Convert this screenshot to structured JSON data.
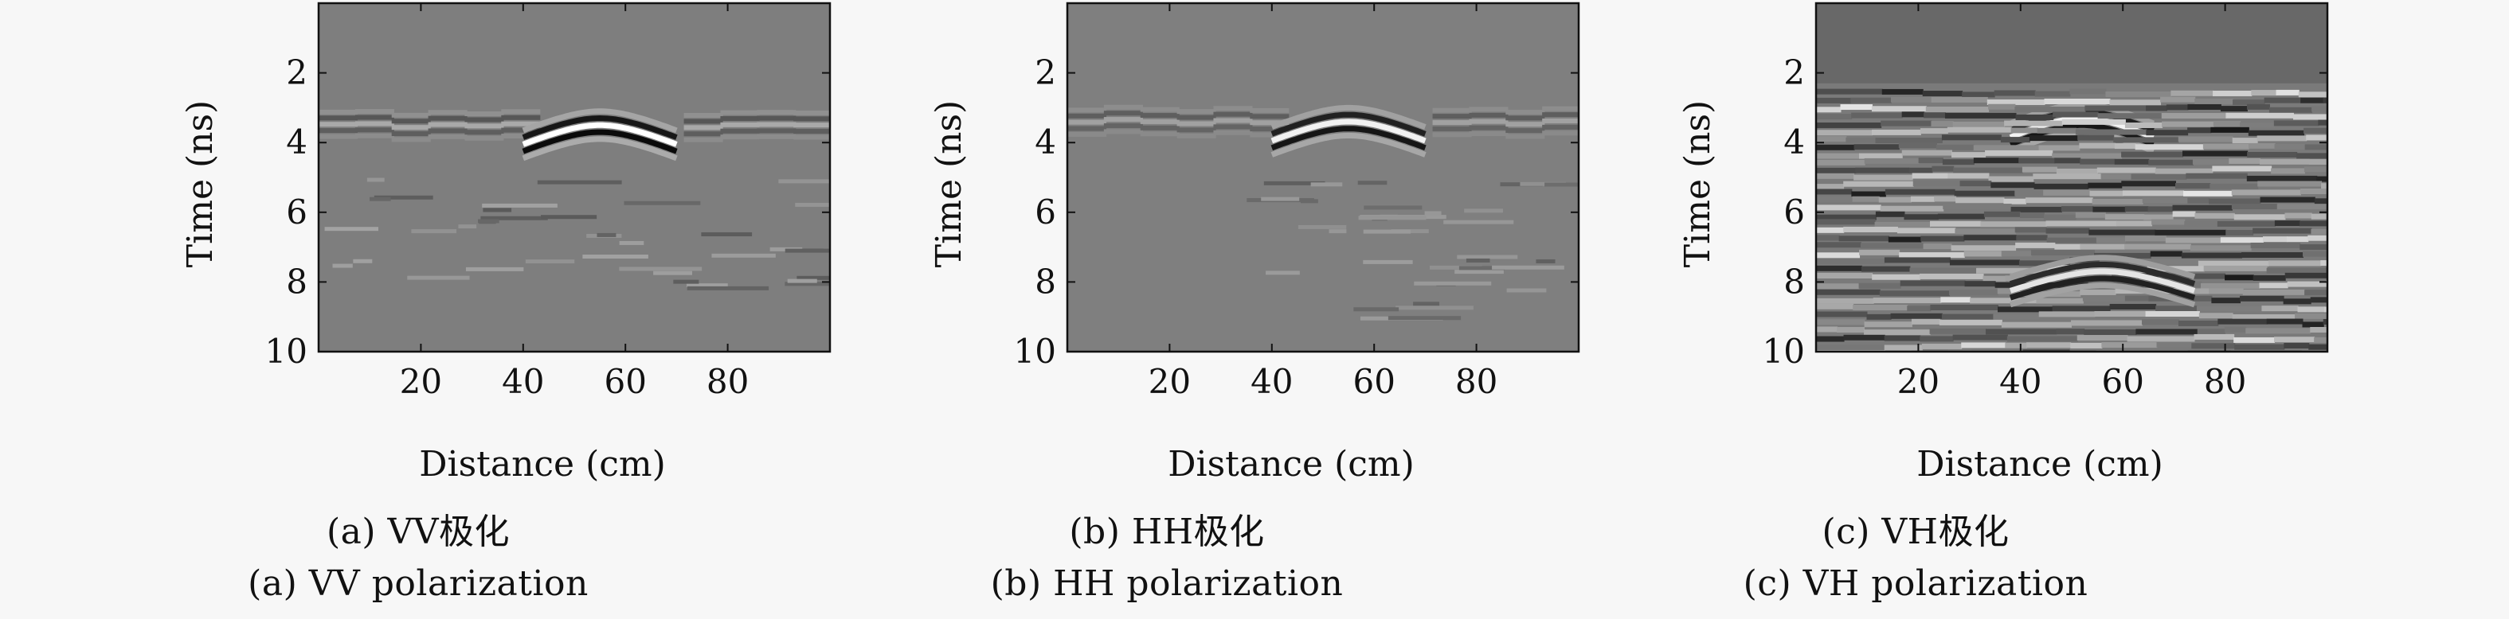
{
  "figure": {
    "panels": [
      {
        "caption_cn": "(a) VV极化",
        "caption_en": "(a) VV polarization"
      },
      {
        "caption_cn": "(b) HH极化",
        "caption_en": "(b) HH polarization"
      },
      {
        "caption_cn": "(c) VH极化",
        "caption_en": "(c) VH polarization"
      }
    ]
  },
  "chart_data": [
    {
      "type": "heatmap",
      "title": "(a) VV极化 / (a) VV polarization",
      "xlabel": "Distance (cm)",
      "ylabel": "Time (ns)",
      "xlim": [
        0,
        100
      ],
      "ylim": [
        0,
        10
      ],
      "y_inverted": true,
      "xticks": [
        20,
        40,
        60,
        80
      ],
      "yticks": [
        2,
        4,
        6,
        8,
        10
      ],
      "colormap": "gray",
      "background_gray": "#7e7e7e",
      "features": [
        {
          "kind": "flat_reflection",
          "time": 3.5,
          "x_range": [
            0,
            100
          ],
          "strength": 0.55
        },
        {
          "kind": "hyperbola",
          "apex_x": 55,
          "apex_time": 3.5,
          "half_width": 15,
          "strength": 1.0
        },
        {
          "kind": "scatter_streaks",
          "time_range": [
            5,
            8.2
          ],
          "x_range": [
            0,
            100
          ],
          "strength": 0.3
        }
      ]
    },
    {
      "type": "heatmap",
      "title": "(b) HH极化 / (b) HH polarization",
      "xlabel": "Distance (cm)",
      "ylabel": "Time (ns)",
      "xlim": [
        0,
        100
      ],
      "ylim": [
        0,
        10
      ],
      "y_inverted": true,
      "xticks": [
        20,
        40,
        60,
        80
      ],
      "yticks": [
        2,
        4,
        6,
        8,
        10
      ],
      "colormap": "gray",
      "background_gray": "#7f7f7f",
      "features": [
        {
          "kind": "flat_reflection",
          "time": 3.4,
          "x_range": [
            0,
            100
          ],
          "strength": 0.45
        },
        {
          "kind": "hyperbola",
          "apex_x": 55,
          "apex_time": 3.4,
          "half_width": 15,
          "strength": 0.9
        },
        {
          "kind": "scatter_streaks",
          "time_range": [
            5,
            9
          ],
          "x_range": [
            35,
            95
          ],
          "strength": 0.25
        }
      ]
    },
    {
      "type": "heatmap",
      "title": "(c) VH极化 / (c) VH polarization",
      "xlabel": "Distance (cm)",
      "ylabel": "Time (ns)",
      "xlim": [
        0,
        100
      ],
      "ylim": [
        0,
        10
      ],
      "y_inverted": true,
      "xticks": [
        20,
        40,
        60,
        80
      ],
      "yticks": [
        2,
        4,
        6,
        8,
        10
      ],
      "colormap": "gray",
      "background_gray": "#7a7a7a",
      "top_gray": "#686868",
      "features": [
        {
          "kind": "dark_top_band",
          "time_range": [
            0,
            2.3
          ]
        },
        {
          "kind": "hyperbola",
          "apex_x": 52,
          "apex_time": 3.3,
          "half_width": 14,
          "strength": 0.9
        },
        {
          "kind": "dense_layers",
          "time_range": [
            2.5,
            10
          ],
          "x_range": [
            0,
            100
          ],
          "strength": 0.8
        },
        {
          "kind": "hyperbola",
          "apex_x": 56,
          "apex_time": 7.7,
          "half_width": 18,
          "strength": 0.8
        }
      ]
    }
  ]
}
